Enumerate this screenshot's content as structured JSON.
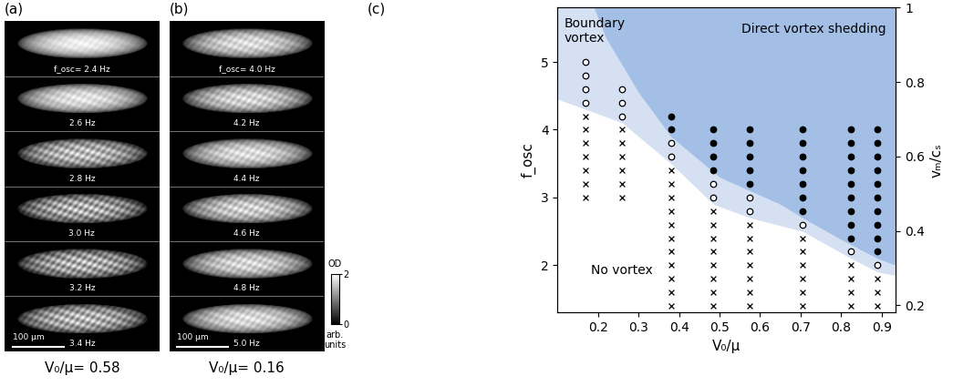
{
  "panel_a": {
    "label": "(a)",
    "frames": [
      "f_osc= 2.4 Hz",
      "2.6 Hz",
      "2.8 Hz",
      "3.0 Hz",
      "3.2 Hz",
      "3.4 Hz"
    ],
    "scale_bar": "100 μm",
    "caption": "V₀/μ= 0.58"
  },
  "panel_b": {
    "label": "(b)",
    "frames": [
      "f_osc= 4.0 Hz",
      "4.2 Hz",
      "4.4 Hz",
      "4.6 Hz",
      "4.8 Hz",
      "5.0 Hz"
    ],
    "scale_bar": "100 μm",
    "caption": "V₀/μ= 0.16"
  },
  "colorbar": {
    "title": "OD",
    "range": [
      0,
      2
    ],
    "ticks": [
      0,
      2
    ],
    "unit": "arb.\nunits"
  },
  "panel_c_label": "(c)",
  "chart_data": {
    "type": "scatter",
    "xlabel": "V₀/μ",
    "ylabel": "f_osc",
    "y2label": "vₘ/cₛ",
    "xlim": [
      0.1,
      0.935
    ],
    "xticks": [
      0.2,
      0.3,
      0.4,
      0.5,
      0.6,
      0.7,
      0.8,
      0.9
    ],
    "ylim": [
      1.3,
      5.8
    ],
    "yticks": [
      2,
      3,
      4,
      5
    ],
    "y2lim": [
      0.18,
      1.0
    ],
    "y2ticks": [
      0.2,
      0.4,
      0.6,
      0.8,
      1
    ],
    "annotations": [
      "Boundary\nvortex",
      "Direct vortex shedding",
      "No vortex"
    ],
    "series": [
      {
        "type": "area",
        "color": "#d5e1f3",
        "x": [
          0.1,
          0.17,
          0.26,
          0.38,
          0.485,
          0.575,
          0.705,
          0.825,
          0.89,
          0.935
        ],
        "values": [
          4.45,
          4.3,
          4.1,
          3.5,
          2.9,
          2.7,
          2.5,
          2.1,
          1.9,
          1.85
        ]
      },
      {
        "type": "area",
        "color": "#a3bfe6",
        "x": [
          0.19,
          0.22,
          0.26,
          0.3,
          0.38,
          0.45,
          0.5,
          0.575,
          0.65,
          0.705,
          0.8,
          0.89,
          0.935
        ],
        "values": [
          5.8,
          5.35,
          4.95,
          4.55,
          3.9,
          3.55,
          3.3,
          3.1,
          2.9,
          2.7,
          2.38,
          2.1,
          2.0
        ]
      },
      {
        "type": "scatter",
        "marker": "x",
        "color": "#000000",
        "x": [
          0.17,
          0.17,
          0.17,
          0.17,
          0.17,
          0.17,
          0.17,
          0.26,
          0.26,
          0.26,
          0.26,
          0.26,
          0.26,
          0.38,
          0.38,
          0.38,
          0.38,
          0.38,
          0.38,
          0.38,
          0.38,
          0.38,
          0.38,
          0.38,
          0.485,
          0.485,
          0.485,
          0.485,
          0.485,
          0.485,
          0.485,
          0.485,
          0.575,
          0.575,
          0.575,
          0.575,
          0.575,
          0.575,
          0.575,
          0.705,
          0.705,
          0.705,
          0.705,
          0.705,
          0.705,
          0.825,
          0.825,
          0.825,
          0.825,
          0.89,
          0.89,
          0.89
        ],
        "values": [
          3.0,
          3.2,
          3.4,
          3.6,
          3.8,
          4.0,
          4.2,
          3.0,
          3.2,
          3.4,
          3.6,
          3.8,
          4.0,
          1.4,
          1.6,
          1.8,
          2.0,
          2.2,
          2.4,
          2.6,
          2.8,
          3.0,
          3.2,
          3.4,
          1.4,
          1.6,
          1.8,
          2.0,
          2.2,
          2.4,
          2.6,
          2.8,
          1.4,
          1.6,
          1.8,
          2.0,
          2.2,
          2.4,
          2.6,
          1.4,
          1.6,
          1.8,
          2.0,
          2.2,
          2.4,
          1.4,
          1.6,
          1.8,
          2.0,
          1.4,
          1.6,
          1.8
        ]
      },
      {
        "type": "scatter",
        "marker": "open circle",
        "color": "#000000",
        "x": [
          0.17,
          0.17,
          0.17,
          0.17,
          0.26,
          0.26,
          0.26,
          0.38,
          0.38,
          0.485,
          0.485,
          0.575,
          0.575,
          0.705,
          0.825,
          0.89
        ],
        "values": [
          4.4,
          4.6,
          4.8,
          5.0,
          4.2,
          4.4,
          4.6,
          3.6,
          3.8,
          3.0,
          3.2,
          2.8,
          3.0,
          2.6,
          2.2,
          2.0
        ]
      },
      {
        "type": "scatter",
        "marker": "filled circle",
        "color": "#000000",
        "x": [
          0.38,
          0.38,
          0.485,
          0.485,
          0.485,
          0.485,
          0.575,
          0.575,
          0.575,
          0.575,
          0.575,
          0.705,
          0.705,
          0.705,
          0.705,
          0.705,
          0.705,
          0.705,
          0.825,
          0.825,
          0.825,
          0.825,
          0.825,
          0.825,
          0.825,
          0.825,
          0.825,
          0.89,
          0.89,
          0.89,
          0.89,
          0.89,
          0.89,
          0.89,
          0.89,
          0.89,
          0.89
        ],
        "values": [
          4.0,
          4.2,
          3.4,
          3.6,
          3.8,
          4.0,
          3.2,
          3.4,
          3.6,
          3.8,
          4.0,
          2.8,
          3.0,
          3.2,
          3.4,
          3.6,
          3.8,
          4.0,
          2.4,
          2.6,
          2.8,
          3.0,
          3.2,
          3.4,
          3.6,
          3.8,
          4.0,
          2.2,
          2.4,
          2.6,
          2.8,
          3.0,
          3.2,
          3.4,
          3.6,
          3.8,
          4.0
        ]
      }
    ]
  }
}
